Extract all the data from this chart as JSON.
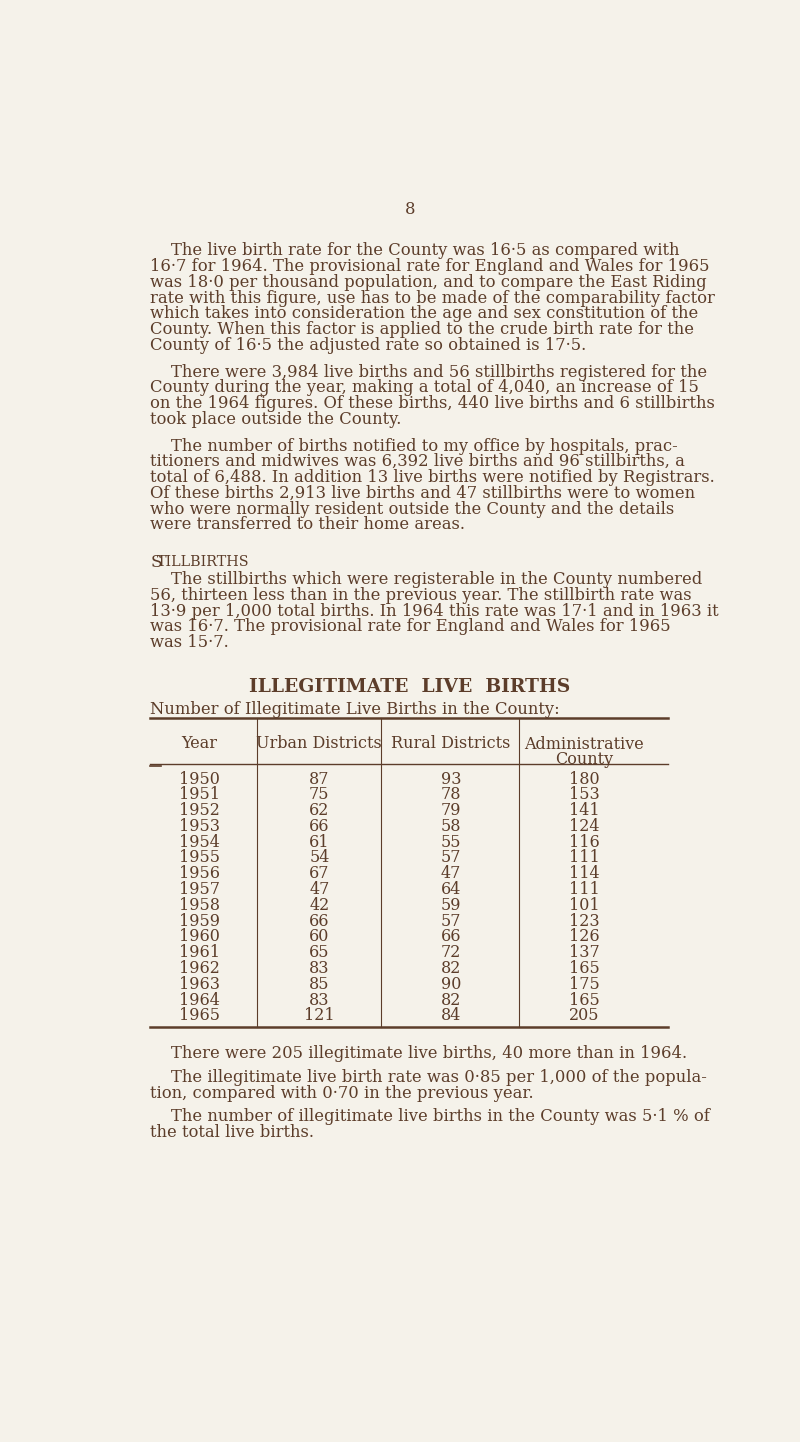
{
  "page_number": "8",
  "bg_color": "#f5f2ea",
  "text_color": "#5c3d2a",
  "para1_lines": [
    "    The live birth rate for the County was 16·5 as compared with",
    "16·7 for 1964. The provisional rate for England and Wales for 1965",
    "was 18·0 per thousand population, and to compare the East Riding",
    "rate with this figure, use has to be made of the comparability factor",
    "which takes into consideration the age and sex constitution of the",
    "County. When this factor is applied to the crude birth rate for the",
    "County of 16·5 the adjusted rate so obtained is 17·5."
  ],
  "para2_lines": [
    "    There were 3,984 live births and 56 stillbirths registered for the",
    "County during the year, making a total of 4,040, an increase of 15",
    "on the 1964 figures. Of these births, 440 live births and 6 stillbirths",
    "took place outside the County."
  ],
  "para3_lines": [
    "    The number of births notified to my office by hospitals, prac-",
    "titioners and midwives was 6,392 live births and 96 stillbirths, a",
    "total of 6,488. In addition 13 live births were notified by Registrars.",
    "Of these births 2,913 live births and 47 stillbirths were to women",
    "who were normally resident outside the County and the details",
    "were transferred to their home areas."
  ],
  "stillbirths_heading": "Stillbirths",
  "para4_lines": [
    "    The stillbirths which were registerable in the County numbered",
    "56, thirteen less than in the previous year. The stillbirth rate was",
    "13·9 per 1,000 total births. In 1964 this rate was 17·1 and in 1963 it",
    "was 16·7. The provisional rate for England and Wales for 1965",
    "was 15·7."
  ],
  "table_heading": "ILLEGITIMATE  LIVE  BIRTHS",
  "table_subtitle": "Number of Illegitimate Live Births in the County:",
  "table_col_headers": [
    "Year",
    "Urban Districts",
    "Rural Districts",
    "Administrative\nCounty"
  ],
  "table_data": [
    [
      1950,
      87,
      93,
      180
    ],
    [
      1951,
      75,
      78,
      153
    ],
    [
      1952,
      62,
      79,
      141
    ],
    [
      1953,
      66,
      58,
      124
    ],
    [
      1954,
      61,
      55,
      116
    ],
    [
      1955,
      54,
      57,
      111
    ],
    [
      1956,
      67,
      47,
      114
    ],
    [
      1957,
      47,
      64,
      111
    ],
    [
      1958,
      42,
      59,
      101
    ],
    [
      1959,
      66,
      57,
      123
    ],
    [
      1960,
      60,
      66,
      126
    ],
    [
      1961,
      65,
      72,
      137
    ],
    [
      1962,
      83,
      82,
      165
    ],
    [
      1963,
      85,
      90,
      175
    ],
    [
      1964,
      83,
      82,
      165
    ],
    [
      1965,
      121,
      84,
      205
    ]
  ],
  "para5_lines": [
    "    There were 205 illegitimate live births, 40 more than in 1964."
  ],
  "para6_lines": [
    "    The illegitimate live birth rate was 0·85 per 1,000 of the popula-",
    "tion, compared with 0·70 in the previous year."
  ],
  "para7_lines": [
    "    The number of illegitimate live births in the County was 5·1 % of",
    "the total live births."
  ]
}
